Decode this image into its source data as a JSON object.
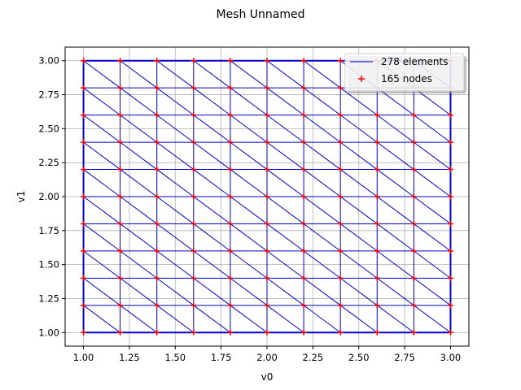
{
  "chart_data": {
    "type": "scatter",
    "title": "Mesh Unnamed",
    "xlabel": "v0",
    "ylabel": "v1",
    "xlim": [
      0.9,
      3.1
    ],
    "ylim": [
      0.9,
      3.1
    ],
    "grid": true,
    "legend_position": "top-right",
    "xticks": [
      "1.00",
      "1.25",
      "1.50",
      "1.75",
      "2.00",
      "2.25",
      "2.50",
      "2.75",
      "3.00"
    ],
    "yticks": [
      "1.00",
      "1.25",
      "1.50",
      "1.75",
      "2.00",
      "2.25",
      "2.50",
      "2.75",
      "3.00"
    ],
    "legend": {
      "elements_label": "278 elements",
      "nodes_label": "165 nodes"
    },
    "colors": {
      "edges": "#0000cc",
      "nodes": "#ff0000",
      "grid": "#b0b0b0"
    },
    "node_x": [
      1.0,
      1.2,
      1.4,
      1.6,
      1.8,
      2.0,
      2.2,
      2.4,
      2.6,
      2.8,
      3.0
    ],
    "node_y": [
      1.0,
      1.2,
      1.4,
      1.6,
      1.8,
      2.0,
      2.2,
      2.4,
      2.6,
      2.8,
      3.0
    ]
  }
}
